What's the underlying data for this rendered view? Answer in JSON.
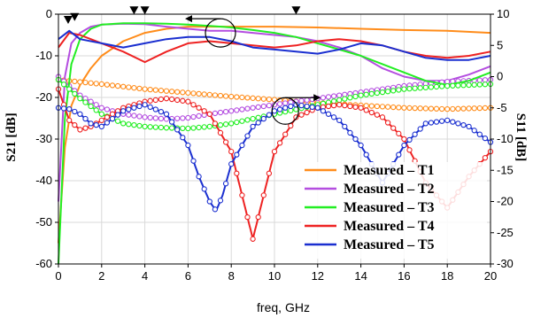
{
  "chart_data": {
    "type": "line",
    "xlabel": "freq, GHz",
    "ylabel_left": "S21 [dB]",
    "ylabel_right": "S11 [dB]",
    "xlim": [
      0,
      20
    ],
    "ylim_left": [
      -60,
      0
    ],
    "ylim_right": [
      -30,
      10
    ],
    "x_ticks": [
      0,
      2,
      4,
      6,
      8,
      10,
      12,
      14,
      16,
      18,
      20
    ],
    "y_ticks_left": [
      0,
      -10,
      -20,
      -30,
      -40,
      -50,
      -60
    ],
    "y_ticks_right": [
      10,
      5,
      0,
      -5,
      -10,
      -15,
      -20,
      -25,
      -30
    ],
    "legend_position": "bottom-right",
    "grid": true,
    "colors": {
      "T1": "#ff8c1a",
      "T2": "#b44ee0",
      "T3": "#22ee22",
      "T4": "#ee2222",
      "T5": "#1a2fd0"
    },
    "series": [
      {
        "name": "Measured – T1",
        "key": "T1",
        "s21": {
          "x": [
            0,
            0.3,
            0.6,
            1,
            1.5,
            2,
            3,
            4,
            5,
            6,
            8,
            10,
            12,
            14,
            16,
            18,
            20
          ],
          "y": [
            -55,
            -32,
            -22,
            -17,
            -13,
            -10,
            -6.5,
            -4.5,
            -3.5,
            -3,
            -3,
            -3,
            -3.2,
            -3.5,
            -3.8,
            -4,
            -4.5
          ]
        },
        "s11": {
          "x": [
            0,
            2,
            4,
            6,
            8,
            10,
            12,
            14,
            16,
            18,
            20
          ],
          "y": [
            -0.5,
            -1.2,
            -2,
            -2.6,
            -3.2,
            -3.7,
            -4.2,
            -4.6,
            -5,
            -5.2,
            -5
          ]
        }
      },
      {
        "name": "Measured – T2",
        "key": "T2",
        "s21": {
          "x": [
            0,
            0.3,
            0.6,
            1,
            1.5,
            2,
            3,
            4,
            5,
            6,
            7,
            8,
            9,
            10,
            11,
            12,
            13,
            14,
            15,
            16,
            17,
            18,
            19,
            20
          ],
          "y": [
            -45,
            -15,
            -7,
            -4.5,
            -3,
            -2.5,
            -2.3,
            -2.4,
            -3,
            -3.5,
            -4,
            -4,
            -4.5,
            -5,
            -5.5,
            -6.5,
            -8,
            -10,
            -13,
            -15,
            -16,
            -16,
            -14.5,
            -12.5
          ]
        },
        "s11": {
          "x": [
            0,
            1,
            2,
            3,
            4,
            5,
            6,
            7,
            8,
            10,
            12,
            14,
            16,
            18,
            20
          ],
          "y": [
            0,
            -3,
            -5,
            -6,
            -6.5,
            -6.8,
            -6.6,
            -6,
            -5.5,
            -4.5,
            -3.5,
            -2.5,
            -1.5,
            -0.8,
            -0.5
          ]
        }
      },
      {
        "name": "Measured – T3",
        "key": "T3",
        "s21": {
          "x": [
            0,
            0.3,
            0.6,
            1,
            1.5,
            2,
            3,
            4,
            5,
            6,
            7,
            8,
            9,
            10,
            11,
            12,
            13,
            14,
            15,
            16,
            17,
            18,
            19,
            20
          ],
          "y": [
            -60,
            -25,
            -12,
            -6,
            -3.5,
            -2.5,
            -2.2,
            -2.2,
            -2.3,
            -2.5,
            -2.8,
            -3.2,
            -3.8,
            -4.5,
            -5.5,
            -7,
            -8.5,
            -10,
            -12,
            -14,
            -16,
            -17,
            -16,
            -14
          ]
        },
        "s11": {
          "x": [
            0,
            1,
            2,
            3,
            4,
            5,
            6,
            7,
            8,
            10,
            12,
            14,
            16,
            18,
            20
          ],
          "y": [
            -0.5,
            -3.5,
            -6,
            -7.5,
            -8,
            -8.2,
            -8.3,
            -8,
            -7.5,
            -6,
            -4.5,
            -3,
            -2,
            -1.5,
            -1.2
          ]
        }
      },
      {
        "name": "Measured – T4",
        "key": "T4",
        "s21": {
          "x": [
            0,
            0.5,
            1,
            1.5,
            2,
            2.5,
            3,
            4,
            5,
            6,
            7,
            8,
            9,
            10,
            11,
            12,
            13,
            14,
            15,
            16,
            17,
            18,
            19,
            20
          ],
          "y": [
            -8,
            -4.5,
            -5,
            -6,
            -7,
            -8,
            -9,
            -11.5,
            -9,
            -7,
            -6.5,
            -7,
            -7.5,
            -8,
            -7.5,
            -6.5,
            -6,
            -6.5,
            -7.5,
            -9,
            -10,
            -10.5,
            -10,
            -9
          ]
        },
        "s11": {
          "x": [
            0,
            0.5,
            1,
            1.5,
            2,
            2.5,
            3,
            4,
            5,
            6,
            7,
            8,
            8.5,
            9,
            9.5,
            10,
            11,
            12,
            13,
            14,
            15,
            16,
            17,
            18,
            19,
            20
          ],
          "y": [
            -2,
            -7,
            -8.5,
            -8,
            -7,
            -6,
            -5,
            -4,
            -3.5,
            -4,
            -6,
            -12,
            -19,
            -26,
            -19,
            -12,
            -6.5,
            -5,
            -4.5,
            -5,
            -6.5,
            -10,
            -17,
            -21,
            -16,
            -12
          ]
        }
      },
      {
        "name": "Measured – T5",
        "key": "T5",
        "s21": {
          "x": [
            0,
            0.5,
            1,
            2,
            3,
            4,
            5,
            6,
            7,
            8,
            9,
            10,
            11,
            12,
            13,
            14,
            15,
            16,
            17,
            18,
            19,
            20
          ],
          "y": [
            -6,
            -4,
            -6,
            -7,
            -8,
            -7,
            -6,
            -5.5,
            -5.5,
            -6.5,
            -8,
            -8.5,
            -9,
            -9.5,
            -8.5,
            -7,
            -7.5,
            -9,
            -10.5,
            -11,
            -11,
            -10
          ]
        },
        "s11": {
          "x": [
            0,
            0.5,
            1,
            1.5,
            2,
            3,
            4,
            5,
            6,
            6.5,
            7,
            7.3,
            7.6,
            8,
            9,
            10,
            11,
            12,
            13,
            14,
            15,
            16,
            17,
            18,
            19,
            20
          ],
          "y": [
            -5,
            -5.2,
            -6,
            -7.5,
            -8,
            -5.5,
            -4.5,
            -6,
            -11,
            -16,
            -20,
            -21.5,
            -19,
            -14,
            -8,
            -5.5,
            -4.5,
            -5,
            -7,
            -11,
            -17,
            -11,
            -7.5,
            -7,
            -8,
            -10.5
          ]
        }
      }
    ]
  }
}
